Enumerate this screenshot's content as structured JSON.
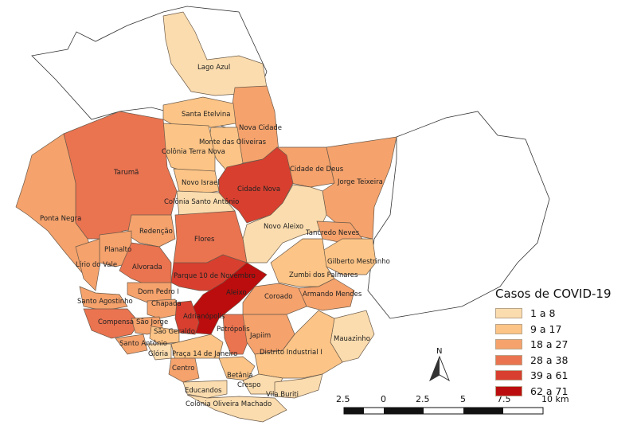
{
  "legend": {
    "title": "Casos de COVID-19",
    "classes": [
      {
        "label": "1 a 8",
        "color": "#fbdcae"
      },
      {
        "label": "9 a 17",
        "color": "#fcc486"
      },
      {
        "label": "18 a 27",
        "color": "#f5a26c"
      },
      {
        "label": "28 a 38",
        "color": "#ea7350"
      },
      {
        "label": "39 a 61",
        "color": "#d83f2f"
      },
      {
        "label": "62 a 71",
        "color": "#bb0d0d"
      }
    ]
  },
  "north_arrow": {
    "label": "N"
  },
  "scale_bar": {
    "ticks": [
      "2.5",
      "0",
      "2.5",
      "5",
      "7.5",
      "10 km"
    ]
  },
  "neighborhoods": [
    {
      "name": "Lago Azul",
      "class": 0
    },
    {
      "name": "Santa Etelvina",
      "class": 1
    },
    {
      "name": "Nova Cidade",
      "class": 2
    },
    {
      "name": "Monte das Oliveiras",
      "class": 1
    },
    {
      "name": "Colônia Terra Nova",
      "class": 1
    },
    {
      "name": "Tarumã",
      "class": 3
    },
    {
      "name": "Cidade de Deus",
      "class": 2
    },
    {
      "name": "Jorge Teixeira",
      "class": 2
    },
    {
      "name": "Novo Israel",
      "class": 1
    },
    {
      "name": "Cidade Nova",
      "class": 4
    },
    {
      "name": "Colônia Santo Antônio",
      "class": 0
    },
    {
      "name": "Ponta Negra",
      "class": 2
    },
    {
      "name": "Novo Aleixo",
      "class": 0
    },
    {
      "name": "Redenção",
      "class": 2
    },
    {
      "name": "Tancredo Neves",
      "class": 2
    },
    {
      "name": "Flores",
      "class": 3
    },
    {
      "name": "Planalto",
      "class": 2
    },
    {
      "name": "Gilberto Mestrinho",
      "class": 1
    },
    {
      "name": "Lírio do Vale",
      "class": 2
    },
    {
      "name": "Alvorada",
      "class": 3
    },
    {
      "name": "Zumbi dos Palmares",
      "class": 1
    },
    {
      "name": "Parque 10 de Novembro",
      "class": 4
    },
    {
      "name": "Dom Pedro I",
      "class": 2
    },
    {
      "name": "Aleixo",
      "class": 5
    },
    {
      "name": "Armando Mendes",
      "class": 2
    },
    {
      "name": "Coroado",
      "class": 2
    },
    {
      "name": "Santo Agostinho",
      "class": 2
    },
    {
      "name": "Chapada",
      "class": 2
    },
    {
      "name": "Adrianópolis",
      "class": 4
    },
    {
      "name": "Compensa",
      "class": 3
    },
    {
      "name": "São Jorge",
      "class": 2
    },
    {
      "name": "Petrópolis",
      "class": 3
    },
    {
      "name": "Japiim",
      "class": 2
    },
    {
      "name": "Mauazinho",
      "class": 0
    },
    {
      "name": "São Geraldo",
      "class": 1
    },
    {
      "name": "Santo Antônio",
      "class": 2
    },
    {
      "name": "Glória",
      "class": 0
    },
    {
      "name": "Praça 14 de Janeiro",
      "class": 1
    },
    {
      "name": "Distrito Industrial I",
      "class": 1
    },
    {
      "name": "Centro",
      "class": 2
    },
    {
      "name": "Betânia",
      "class": 1
    },
    {
      "name": "Crespo",
      "class": 0
    },
    {
      "name": "Educandos",
      "class": 0
    },
    {
      "name": "Vila Buriti",
      "class": 0
    },
    {
      "name": "Colônia Oliveira Machado",
      "class": 0
    }
  ]
}
